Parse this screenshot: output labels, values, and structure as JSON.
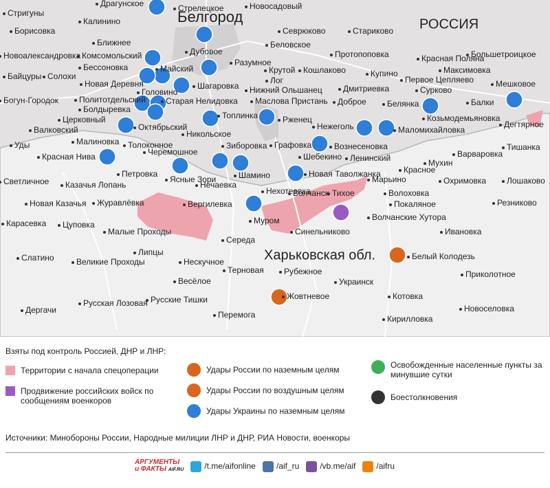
{
  "map": {
    "regions": [
      "Белгород",
      "РОССИЯ",
      "Харьковская обл."
    ],
    "places": [
      "Стригуны",
      "Драгунское",
      "Стрелецкое",
      "Новосадовый",
      "Калинино",
      "Борисовка",
      "Севрюково",
      "Стариково",
      "Ближнее",
      "Дубовое",
      "Беловское",
      "Новоалександровка",
      "Комсомольский",
      "Протопоповка",
      "Красная Поляна",
      "Большетроицкое",
      "Байцуры",
      "Солохи",
      "Бессоновка",
      "Разумное",
      "Крутой",
      "Кошлаково",
      "Максимовка",
      "Новая Деревня",
      "Майский",
      "Лог",
      "Купино",
      "Первое Цепляево",
      "Мешковое",
      "Головино",
      "Шагаровка",
      "Нижний Ольшанец",
      "Дмитриевка",
      "Сурково",
      "Богун-Городок",
      "Политотдельский",
      "Старая Нелидовка",
      "Маслова Пристань",
      "Доброе",
      "Белянка",
      "Балки",
      "Болдыревка",
      "Топлинка",
      "Козьмодемьяновка",
      "Церковный",
      "Октябрьский",
      "Никольское",
      "Рженец",
      "Нежеголь",
      "Маломихайловка",
      "Дегтярное",
      "Валковский",
      "Малиновка",
      "Толоконное",
      "Зиборовка",
      "Графовка",
      "Вознесеновка",
      "Уды",
      "Тишанка",
      "Черемошное",
      "Варваровка",
      "Красная Нива",
      "Шебекино",
      "Ленинский",
      "Мухин",
      "Новая Таволжанка",
      "Красное",
      "Петровка",
      "Ясные Зори",
      "Шамино",
      "Светличное",
      "Казачья Лопань",
      "Нечаевка",
      "Нехотеевка",
      "Марьино",
      "Охримовка",
      "Лошаково",
      "Тихое",
      "Волоховка",
      "Новая Казачья",
      "Журавлёвка",
      "Вергилевка",
      "Волчанск",
      "Покаляное",
      "Резниково",
      "Цуповка",
      "Карасевка",
      "Муром",
      "Волчанские Хутора",
      "Малые Проходы",
      "Синельниково",
      "Ивановка",
      "Середа",
      "Белый Колодезь",
      "Слатино",
      "Липцы",
      "Великие Проходы",
      "Нескучное",
      "Терновая",
      "Рубежное",
      "Приколотное",
      "Весёлое",
      "Украинск",
      "Русская Лозовая",
      "Русские Тишки",
      "Жовтневое",
      "Котовка",
      "Дергачи",
      "Новоселовка",
      "Перемога",
      "Кирилловка"
    ]
  },
  "legend": {
    "heading": "Взяты под контроль Россией, ДНР и ЛНР:",
    "territories": "Территории с начала спецоперации",
    "advance": "Продвижение российских войск по сообщениям военкоров",
    "ground_ru": "Удары России по наземным целям",
    "air_ru": "Удары России по воздушным целям",
    "ground_ua": "Удары Украины по наземным целям",
    "liberated": "Освобожденные населенные пункты за минувшие сутки",
    "clashes": "Боестолкновения"
  },
  "sources": "Источники: Минобороны России, Народные милиции ЛНР и ДНР, РИА Новости, военкоры",
  "footer": {
    "logo_top": "АРГУМЕНТЫ",
    "logo_bottom": "и ФАКТЫ",
    "logo_site": "AIF.RU",
    "links": [
      "/t.me/aifonline",
      "/aif_ru",
      "/vb.me/aif",
      "/aifru"
    ]
  }
}
